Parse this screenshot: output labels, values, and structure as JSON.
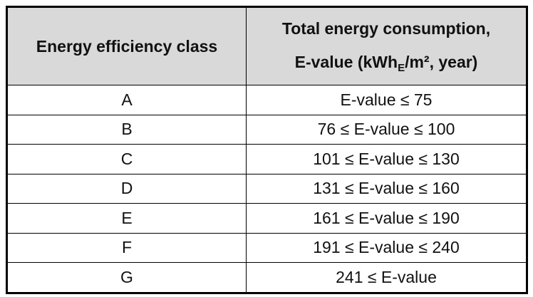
{
  "header": {
    "columns": [
      "Energy efficiency class",
      {
        "line1": "Total energy consumption,",
        "line2_pre": "E-value (kWh",
        "sub": "E",
        "line2_post": "/m², year)"
      }
    ]
  },
  "table": {
    "rows": [
      [
        "A",
        "E-value ≤ 75"
      ],
      [
        "B",
        "76 ≤ E-value ≤ 100"
      ],
      [
        "C",
        "101 ≤ E-value ≤ 130"
      ],
      [
        "D",
        "131 ≤ E-value ≤ 160"
      ],
      [
        "E",
        "161 ≤ E-value ≤ 190"
      ],
      [
        "F",
        "191 ≤ E-value ≤ 240"
      ],
      [
        "G",
        "241 ≤ E-value"
      ]
    ]
  }
}
